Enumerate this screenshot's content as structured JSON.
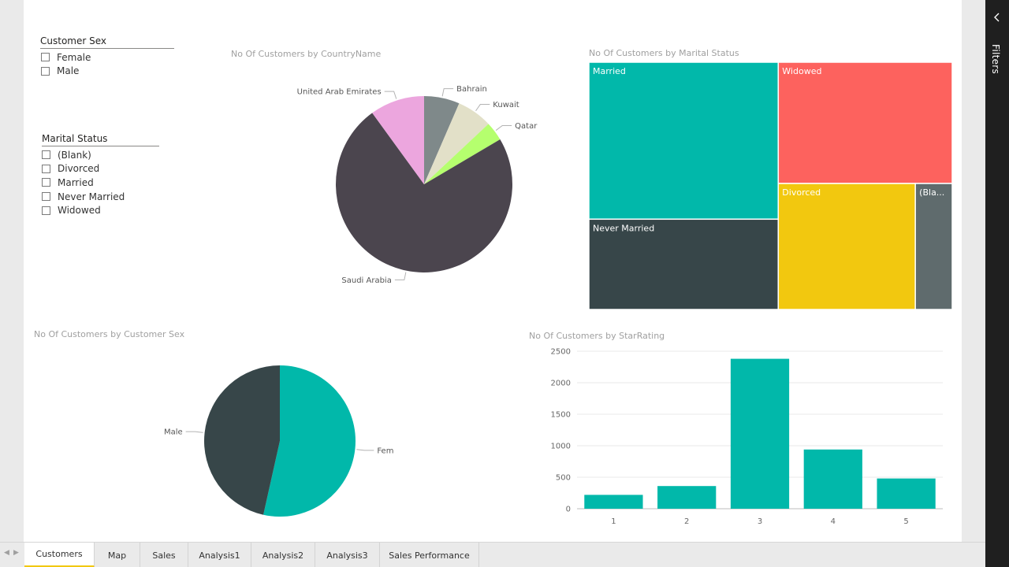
{
  "slicers": {
    "customer_sex": {
      "title": "Customer Sex",
      "items": [
        "Female",
        "Male"
      ]
    },
    "marital_status": {
      "title": "Marital Status",
      "items": [
        "(Blank)",
        "Divorced",
        "Married",
        "Never Married",
        "Widowed"
      ]
    }
  },
  "visuals": {
    "country_pie": {
      "title": "No Of Customers by CountryName"
    },
    "marital_treemap": {
      "title": "No Of Customers by Marital Status"
    },
    "sex_pie": {
      "title": "No Of Customers by Customer Sex"
    },
    "star_bar": {
      "title": "No Of Customers by StarRating"
    }
  },
  "chart_data": [
    {
      "type": "pie",
      "title": "No Of Customers by CountryName",
      "labels": [
        "Bahrain",
        "Kuwait",
        "Qatar",
        "Saudi Arabia",
        "United Arab Emirates"
      ],
      "values": [
        6.5,
        6.5,
        3.5,
        73.5,
        10
      ],
      "colors": [
        "#7f898a",
        "#e2e0c8",
        "#b5ff6e",
        "#4b454e",
        "#eca6de"
      ]
    },
    {
      "type": "treemap",
      "title": "No Of Customers by Marital Status",
      "labels": [
        "Married",
        "Never Married",
        "Widowed",
        "Divorced",
        "(Blank)"
      ],
      "values": [
        1790,
        1030,
        1270,
        1040,
        280
      ],
      "display_labels": [
        "Married",
        "Never Married",
        "Widowed",
        "Divorced",
        "(Bla..."
      ],
      "colors": [
        "#01b8aa",
        "#374649",
        "#fd625e",
        "#f2c80f",
        "#5f6b6d"
      ]
    },
    {
      "type": "pie",
      "title": "No Of Customers by Customer Sex",
      "labels": [
        "Female",
        "Male"
      ],
      "values": [
        53.5,
        46.5
      ],
      "colors": [
        "#01b8aa",
        "#374649"
      ]
    },
    {
      "type": "bar",
      "title": "No Of Customers by StarRating",
      "categories": [
        "1",
        "2",
        "3",
        "4",
        "5"
      ],
      "values": [
        220,
        360,
        2380,
        940,
        480
      ],
      "ylim": [
        0,
        2500
      ],
      "yticks": [
        0,
        500,
        1000,
        1500,
        2000,
        2500
      ],
      "grid": true,
      "color": "#01b8aa"
    }
  ],
  "filters_pane": {
    "label": "Filters",
    "collapse_icon": "chevron-left-icon"
  },
  "tabs": [
    "Customers",
    "Map",
    "Sales",
    "Analysis1",
    "Analysis2",
    "Analysis3",
    "Sales Performance"
  ],
  "active_tab": "Customers"
}
